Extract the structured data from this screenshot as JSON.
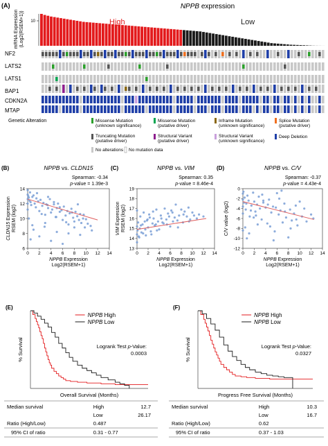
{
  "panel_a": {
    "panel_letter": "(A)",
    "title_gene": "NPPB",
    "title_rest": " expression",
    "ylabel_line1": "mRNA Expression",
    "ylabel_line2": "(Log2(RSEM+1))",
    "ytick": "10",
    "high_label": "High",
    "low_label": "Low",
    "genes": [
      "NF2",
      "LATS2",
      "LATS1",
      "BAP1",
      "CDKN2A",
      "MTAP"
    ],
    "legend": {
      "genetic_alteration": "Genetic Alteration",
      "missense_unknown_1": "Missense Mutation",
      "missense_unknown_2": "(unknown significance)",
      "missense_driver_1": "Missense Mutation",
      "missense_driver_2": "(putative driver)",
      "inframe_1": "Inframe Mutation",
      "inframe_2": "(unknown significance)",
      "splice_1": "Splice Mutation",
      "splice_2": "(putative driver)",
      "truncating_1": "Truncating Mutation",
      "truncating_2": "(putative driver)",
      "sv_driver_1": "Structural Variant",
      "sv_driver_2": "(putative driver)",
      "sv_unknown_1": "Structural Variant",
      "sv_unknown_2": "(unknown significance)",
      "deep_deletion": "Deep Deletion",
      "no_alterations": "No alterations",
      "no_mutation_data": "No mutation data"
    }
  },
  "scatter_panels": [
    {
      "letter": "(B)",
      "title_gene": "NPPB",
      "title_mid": " vs. ",
      "title_target": "CLDN15",
      "stat_line1": "Spearman: -0.34",
      "stat_line2_italic": "p",
      "stat_line2": "-value = 1.39e-3",
      "ylabel_gene": "CLDN15",
      "ylabel_line1_rest": " Expression",
      "ylabel_line2": "RSEM (log2)",
      "xlabel_gene": "NPPB",
      "xlabel_rest": " Expression",
      "xlabel_line2": "Log2(RSEM+1)"
    },
    {
      "letter": "(C)",
      "title_gene": "NPPB",
      "title_mid": " vs. ",
      "title_target": "VIM",
      "stat_line1": "Spearman: 0.35",
      "stat_line2_italic": "p",
      "stat_line2": "-value = 8.46e-4",
      "ylabel_gene": "VIM",
      "ylabel_line1_rest": " Expression",
      "ylabel_line2": "RSEM (log2)",
      "xlabel_gene": "NPPB",
      "xlabel_rest": " Expression",
      "xlabel_line2": "Log2(RSEM+1)"
    },
    {
      "letter": "(D)",
      "title_gene": "NPPB",
      "title_mid": " vs. ",
      "title_target": "C/V",
      "stat_line1": "Spearman: -0.37",
      "stat_line2_italic": "p",
      "stat_line2": "-value = 4.43e-4",
      "ylabel_gene": "",
      "ylabel_line1_rest": "C/V value (log2)",
      "ylabel_line2": "",
      "xlabel_gene": "NPPB",
      "xlabel_rest": " Expression",
      "xlabel_line2": "Log2(RSEM+1)"
    }
  ],
  "survival_panels": [
    {
      "letter": "(E)",
      "legend_high_gene": "NPPB",
      "legend_high": " High",
      "legend_low_gene": "NPPB",
      "legend_low": " Low",
      "logrank_text": "Logrank Test ",
      "logrank_italic": "p",
      "logrank_suffix": "-Value:",
      "logrank_value": "0.0003",
      "ylabel": "% Survival",
      "xlabel": "Overall Survival (Months)",
      "table": {
        "median_label": "Median survival",
        "high_label": "High",
        "high_value": "12.7",
        "low_label": "Low",
        "low_value": "26.17",
        "ratio_label": "Ratio (High/Low)",
        "ratio_value": "0.487",
        "ci_label": "95% CI of ratio",
        "ci_value": "0.31 - 0.77"
      }
    },
    {
      "letter": "(F)",
      "legend_high_gene": "NPPB",
      "legend_high": " High",
      "legend_low_gene": "NPPB",
      "legend_low": " Low",
      "logrank_text": "Logrank Test ",
      "logrank_italic": "p",
      "logrank_suffix": "-Value:",
      "logrank_value": "0.0327",
      "ylabel": "% Survival",
      "xlabel": "Progress Free Survival (Months)",
      "table": {
        "median_label": "Median survival",
        "high_label": "High",
        "high_value": "10.3",
        "low_label": "Low",
        "low_value": "16.7",
        "ratio_label": "Ratio (High/Low)",
        "ratio_value": "0.62",
        "ci_label": "95% CI of ratio",
        "ci_value": "0.37 - 1.03"
      }
    }
  ],
  "colors": {
    "high_red": "#e31a1c",
    "low_black": "#1a1a1a",
    "missense_unknown": "#2ca02c",
    "missense_driver": "#00a650",
    "inframe": "#8b6914",
    "splice": "#f07020",
    "truncating": "#555555",
    "sv_driver": "#8e1f8e",
    "sv_unknown": "#c9a0dc",
    "deep_deletion": "#1f3fa8",
    "no_alteration": "#c8c8c8",
    "scatter_point": "#7a9fd6",
    "fit_line": "#e06060"
  },
  "chart_data": [
    {
      "type": "bar",
      "ylabel": "mRNA Expression (Log2(RSEM+1))",
      "ylim": [
        0,
        12
      ],
      "series": [
        {
          "name": "High",
          "values": [
            12.0,
            11.6,
            11.3,
            11.0,
            10.8,
            10.6,
            10.4,
            10.2,
            10.0,
            9.8,
            9.6,
            9.4,
            9.2,
            9.0,
            8.9,
            8.8,
            8.7,
            8.6,
            8.5,
            8.4,
            8.3,
            8.2,
            8.1,
            8.0,
            7.9,
            7.8,
            7.7,
            7.6,
            7.5,
            7.4,
            7.3,
            7.2,
            7.1,
            7.0,
            6.9,
            6.8,
            6.7,
            6.6,
            6.5,
            6.4,
            6.3,
            6.2,
            6.1,
            6.0
          ]
        },
        {
          "name": "Low",
          "values": [
            5.9,
            5.8,
            5.7,
            5.6,
            5.5,
            5.4,
            5.2,
            5.0,
            4.8,
            4.6,
            4.4,
            4.2,
            4.0,
            3.8,
            3.6,
            3.4,
            3.2,
            3.0,
            2.8,
            2.6,
            2.4,
            2.2,
            2.0,
            1.8,
            1.6,
            1.4,
            1.2,
            1.0,
            0.9,
            0.8,
            0.7,
            0.6,
            0.5,
            0.4,
            0.35,
            0.3,
            0.25,
            0.2,
            0.15,
            0.1,
            0.05,
            0.03,
            0.02,
            0.01
          ]
        }
      ]
    },
    {
      "type": "scatter",
      "xlabel": "NPPB Expression Log2(RSEM+1)",
      "ylabel": "CLDN15 Expression RSEM (log2)",
      "xlim": [
        0,
        14
      ],
      "ylim": [
        6,
        14
      ],
      "xticks": [
        0,
        2,
        4,
        6,
        8,
        10,
        12,
        14
      ],
      "yticks": [
        6,
        8,
        10,
        12,
        14
      ],
      "fit": [
        [
          0,
          12.6
        ],
        [
          12,
          9.8
        ]
      ],
      "x": [
        0.0,
        0.0,
        0.0,
        0.0,
        0.0,
        0.1,
        0.2,
        0.3,
        0.4,
        0.5,
        0.6,
        0.8,
        1.0,
        1.2,
        1.4,
        1.5,
        1.8,
        2.0,
        2.2,
        2.5,
        2.7,
        3.0,
        3.2,
        3.5,
        3.8,
        4.0,
        4.2,
        4.5,
        4.8,
        5.0,
        5.2,
        5.5,
        5.8,
        6.0,
        6.2,
        6.5,
        6.8,
        7.0,
        7.2,
        7.5,
        7.8,
        8.0,
        8.2,
        8.5,
        8.8,
        9.0,
        9.2,
        9.5,
        9.8,
        10.0,
        10.3,
        10.8,
        11.0,
        0.5,
        1.0,
        2.0,
        3.0,
        4.0,
        5.0,
        6.0,
        7.0,
        8.0,
        9.0,
        3.5,
        4.5,
        5.5,
        0.2,
        0.8,
        1.6,
        2.4,
        3.4,
        6.6,
        7.6,
        8.6,
        9.6,
        2.9,
        4.9
      ],
      "y": [
        13.8,
        13.2,
        12.6,
        12.0,
        11.2,
        13.0,
        12.8,
        12.4,
        13.5,
        12.2,
        11.8,
        12.9,
        13.1,
        12.0,
        11.5,
        12.7,
        12.3,
        11.0,
        12.5,
        11.7,
        12.1,
        10.5,
        11.9,
        11.4,
        12.6,
        10.8,
        11.2,
        11.9,
        10.2,
        11.4,
        12.0,
        10.9,
        11.1,
        9.8,
        11.6,
        10.4,
        11.0,
        9.2,
        10.7,
        11.3,
        10.1,
        9.6,
        10.9,
        10.3,
        9.8,
        10.6,
        9.4,
        10.0,
        8.8,
        9.9,
        9.3,
        9.0,
        8.4,
        7.2,
        8.5,
        7.6,
        9.4,
        7.0,
        8.2,
        6.6,
        8.0,
        8.8,
        7.8,
        12.9,
        12.2,
        11.5,
        10.0,
        9.1,
        13.4,
        10.6,
        11.8,
        9.5,
        10.8,
        11.9,
        10.5,
        8.9,
        10.2
      ]
    },
    {
      "type": "scatter",
      "xlabel": "NPPB Expression Log2(RSEM+1)",
      "ylabel": "VIM Expression RSEM (log2)",
      "xlim": [
        0,
        14
      ],
      "ylim": [
        13,
        19
      ],
      "xticks": [
        0,
        2,
        4,
        6,
        8,
        10,
        12,
        14
      ],
      "yticks": [
        13,
        14,
        15,
        16,
        17,
        18,
        19
      ],
      "fit": [
        [
          0,
          14.9
        ],
        [
          12.5,
          16.0
        ]
      ],
      "x": [
        0.0,
        0.0,
        0.0,
        0.0,
        0.1,
        0.2,
        0.3,
        0.5,
        0.6,
        0.8,
        1.0,
        1.2,
        1.5,
        1.8,
        2.0,
        2.2,
        2.5,
        2.8,
        3.0,
        3.2,
        3.5,
        3.8,
        4.0,
        4.3,
        4.6,
        5.0,
        5.3,
        5.6,
        6.0,
        6.2,
        6.5,
        6.8,
        7.0,
        7.3,
        7.6,
        8.0,
        8.3,
        8.6,
        9.0,
        9.3,
        9.6,
        10.0,
        10.3,
        10.8,
        11.2,
        12.0,
        0.4,
        1.1,
        1.9,
        2.6,
        3.4,
        4.4,
        5.4,
        6.4,
        7.4,
        8.4,
        9.4,
        1.4,
        2.3,
        3.6,
        4.8,
        5.8,
        0.7,
        1.6,
        2.9
      ],
      "y": [
        13.6,
        14.4,
        15.2,
        16.8,
        14.8,
        15.6,
        14.2,
        15.0,
        16.2,
        14.6,
        15.4,
        16.6,
        14.9,
        15.8,
        15.1,
        16.4,
        14.7,
        15.5,
        16.0,
        15.3,
        16.9,
        15.7,
        14.9,
        16.3,
        15.6,
        17.0,
        15.9,
        16.5,
        15.2,
        16.8,
        15.7,
        16.1,
        17.4,
        15.8,
        16.3,
        16.9,
        15.6,
        16.7,
        16.2,
        17.1,
        15.9,
        16.6,
        16.3,
        16.0,
        16.4,
        16.2,
        14.1,
        14.5,
        15.9,
        14.4,
        15.4,
        16.0,
        15.4,
        16.6,
        15.1,
        16.4,
        15.7,
        15.7,
        16.1,
        14.8,
        15.5,
        16.2,
        15.3,
        14.3,
        16.7
      ]
    },
    {
      "type": "scatter",
      "xlabel": "NPPB Expression Log2(RSEM+1)",
      "ylabel": "C/V value (log2)",
      "xlim": [
        0,
        14
      ],
      "ylim": [
        -12,
        0
      ],
      "xticks": [
        0,
        2,
        4,
        6,
        8,
        10,
        12,
        14
      ],
      "yticks": [
        -12,
        -10,
        -8,
        -6,
        -4,
        -2,
        0
      ],
      "fit": [
        [
          0,
          -2.6
        ],
        [
          12.5,
          -6.2
        ]
      ],
      "x": [
        0.0,
        0.0,
        0.0,
        0.0,
        0.0,
        0.1,
        0.2,
        0.3,
        0.5,
        0.6,
        0.8,
        1.0,
        1.2,
        1.5,
        1.8,
        2.0,
        2.2,
        2.5,
        2.8,
        3.0,
        3.3,
        3.6,
        4.0,
        4.3,
        4.6,
        5.0,
        5.3,
        5.6,
        6.0,
        6.3,
        6.6,
        7.0,
        7.3,
        7.6,
        8.0,
        8.3,
        8.6,
        9.0,
        9.3,
        9.6,
        10.0,
        10.4,
        10.8,
        11.2,
        12.0,
        12.4,
        0.4,
        1.1,
        1.9,
        2.6,
        3.4,
        4.4,
        5.4,
        6.4,
        7.4,
        8.4,
        9.4,
        1.4,
        2.3,
        3.6,
        4.8,
        0.7,
        5.8,
        6.8
      ],
      "y": [
        -1.0,
        -2.2,
        -3.6,
        -5.0,
        -8.4,
        -0.6,
        -2.8,
        -1.8,
        -4.2,
        -3.0,
        -1.4,
        -2.4,
        -5.6,
        -3.4,
        -0.8,
        -2.6,
        -4.6,
        -3.2,
        -1.6,
        -4.0,
        -6.2,
        -2.8,
        -3.8,
        -7.0,
        -2.2,
        -4.8,
        -3.6,
        -8.6,
        -0.9,
        -5.2,
        -4.4,
        -6.8,
        -3.0,
        -5.8,
        -9.8,
        -4.2,
        -6.4,
        -5.0,
        -3.4,
        -7.4,
        -2.6,
        -5.6,
        -4.0,
        -6.6,
        -5.2,
        -6.0,
        -7.8,
        -9.0,
        -5.8,
        -7.2,
        -1.2,
        -3.2,
        -10.4,
        -2.0,
        -4.6,
        -8.0,
        -6.2,
        -4.4,
        -5.4,
        -2.4,
        -7.6,
        -10.0,
        -3.8,
        -0.4
      ]
    },
    {
      "type": "line",
      "xlabel": "Overall Survival (Months)",
      "ylabel": "% Survival",
      "xlim": [
        0,
        100
      ],
      "ylim": [
        0,
        100
      ],
      "series": [
        {
          "name": "NPPB High",
          "x": [
            0,
            2,
            4,
            5,
            6,
            7,
            8,
            9,
            10,
            11,
            12,
            13,
            14,
            15,
            16,
            17,
            18,
            20,
            22,
            24,
            26,
            28,
            30,
            34,
            40,
            48,
            60,
            72,
            100
          ],
          "y": [
            100,
            95,
            90,
            86,
            82,
            78,
            73,
            68,
            64,
            58,
            52,
            47,
            42,
            37,
            33,
            30,
            26,
            22,
            19,
            16,
            14,
            12,
            10,
            9,
            8,
            7,
            6,
            5,
            5
          ]
        },
        {
          "name": "NPPB Low",
          "x": [
            0,
            3,
            6,
            9,
            12,
            15,
            18,
            21,
            24,
            27,
            30,
            33,
            36,
            40,
            44,
            48,
            52,
            56,
            60,
            66,
            72,
            76,
            80,
            84
          ],
          "y": [
            100,
            97,
            93,
            89,
            84,
            79,
            72,
            66,
            58,
            52,
            46,
            40,
            35,
            30,
            26,
            23,
            20,
            17,
            14,
            11,
            8,
            6,
            4,
            0
          ]
        }
      ]
    },
    {
      "type": "line",
      "xlabel": "Progress Free Survival (Months)",
      "ylabel": "% Survival",
      "xlim": [
        0,
        80
      ],
      "ylim": [
        0,
        100
      ],
      "series": [
        {
          "name": "NPPB High",
          "x": [
            0,
            2,
            4,
            5,
            6,
            7,
            8,
            9,
            10,
            11,
            12,
            13,
            14,
            15,
            16,
            18,
            20,
            22,
            24,
            26,
            30,
            34,
            40,
            50,
            60,
            80
          ],
          "y": [
            100,
            95,
            89,
            84,
            79,
            74,
            68,
            62,
            57,
            52,
            47,
            43,
            39,
            35,
            31,
            27,
            24,
            21,
            18,
            16,
            15,
            14,
            13,
            12,
            12,
            12
          ]
        },
        {
          "name": "NPPB Low",
          "x": [
            0,
            3,
            6,
            9,
            12,
            15,
            18,
            21,
            24,
            27,
            30,
            33,
            36,
            40,
            44,
            48,
            52,
            56,
            60,
            64,
            66
          ],
          "y": [
            100,
            96,
            90,
            83,
            75,
            66,
            56,
            48,
            41,
            36,
            31,
            27,
            24,
            21,
            19,
            17,
            16,
            15,
            14,
            14,
            0
          ]
        }
      ]
    }
  ]
}
